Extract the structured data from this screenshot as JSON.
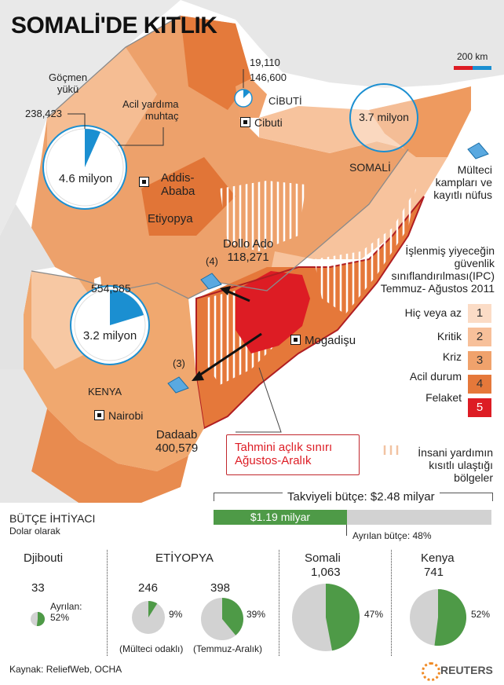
{
  "title": "SOMALİ'DE KITLIK",
  "scale": {
    "label": "200 km"
  },
  "map_labels": {
    "djibouti_refugees_top": "19,110",
    "djibouti_need": "146,600",
    "djibouti_country": "CİBUTİ",
    "djibouti_city": "Cibuti",
    "ethiopia_refugees_label": "Göçmen\nyükü",
    "ethiopia_refugees_value": "238,423",
    "ethiopia_need_label": "Acil yardıma\nmuhtaç",
    "ethiopia_need_value": "4.6 milyon",
    "addis": "Addis-\nAbaba",
    "ethiopia_country": "Etiyopya",
    "somalia_need_value": "3.7 milyon",
    "somalia_country": "SOMALİ",
    "dollo_ado": "Dollo Ado\n118,271",
    "dollo_num": "(4)",
    "kenya_refugees_value": "554,585",
    "kenya_need_value": "3.2 milyon",
    "kenya_country": "KENYA",
    "nairobi": "Nairobi",
    "dadaab_num": "(3)",
    "dadaab": "Dadaab\n400,579",
    "mogadishu": "Mogadişu",
    "famine_box": "Tahmini açlık sınırı\nAğustos-Aralık"
  },
  "legend": {
    "camps_label": "Mülteci\nkampları ve\nkayıtlı nüfus",
    "ipc_title": "İşlenmiş yiyeceğin\ngüvenlik\nsınıflandırılması(IPC)\nTemmuz- Ağustos 2011",
    "levels": [
      {
        "label": "Hiç veya az",
        "num": "1",
        "color": "#fbdcc6"
      },
      {
        "label": "Kritik",
        "num": "2",
        "color": "#f7c09a"
      },
      {
        "label": "Kriz",
        "num": "3",
        "color": "#f0a26c"
      },
      {
        "label": "Acil durum",
        "num": "4",
        "color": "#e5783a"
      },
      {
        "label": "Felaket",
        "num": "5",
        "color": "#dd1c24"
      }
    ],
    "hatch_label": "İnsani yardımın\nkısıtlı ulaştığı\nbölgeler"
  },
  "budget": {
    "title": "BÜTÇE İHTİYACI",
    "subtitle": "Dolar olarak",
    "total_label": "Takviyeli bütçe: $2.48 milyar",
    "allocated_label": "$1.19 milyar",
    "allocated_note": "Ayrılan bütçe: 48%",
    "allocated_fraction": 0.48,
    "countries": [
      {
        "name": "Djibouti",
        "value": "33",
        "pct_label": "Ayrılan:\n52%",
        "fraction": 0.52
      },
      {
        "name": "ETİYOPYA",
        "value_a": "246",
        "value_b": "398",
        "pct_a": "9%",
        "pct_b": "39%",
        "fraction_a": 0.09,
        "fraction_b": 0.39,
        "note_a": "(Mülteci odaklı)",
        "note_b": "(Temmuz-Aralık)"
      },
      {
        "name": "Somali",
        "value": "1,063",
        "pct_label": "47%",
        "fraction": 0.47
      },
      {
        "name": "Kenya",
        "value": "741",
        "pct_label": "52%",
        "fraction": 0.52
      }
    ]
  },
  "source": "Kaynak: ReliefWeb, OCHA",
  "brand": "REUTERS",
  "colors": {
    "pie_blue": "#1b8fd1",
    "pie_green": "#4e9a47",
    "pie_grey": "#d2d2d2",
    "famine_red": "#dd1c24"
  }
}
